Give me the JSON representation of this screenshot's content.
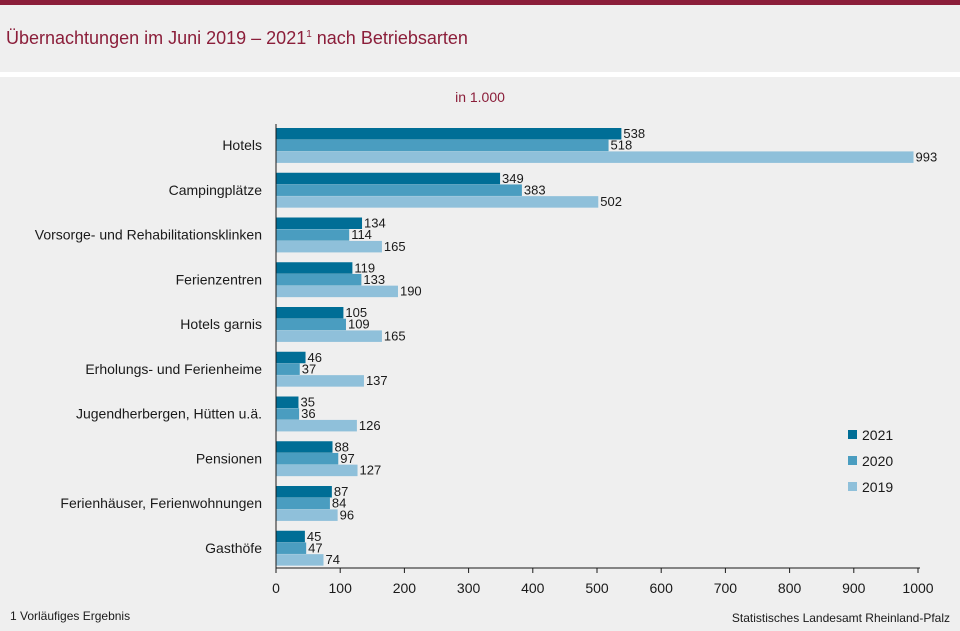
{
  "header": {
    "title": "Übernachtungen im Juni 2019 – 2021",
    "title_sup": "1",
    "title_tail": " nach Betriebsarten"
  },
  "chart_data": {
    "type": "bar",
    "orientation": "horizontal",
    "unit": "in 1.000",
    "categories": [
      "Hotels",
      "Campingplätze",
      "Vorsorge- und Rehabilitationsklinken",
      "Ferienzentren",
      "Hotels garnis",
      "Erholungs- und Ferienheime",
      "Jugendherbergen, Hütten u.ä.",
      "Pensionen",
      "Ferienhäuser, Ferienwohnungen",
      "Gasthöfe"
    ],
    "series": [
      {
        "name": "2021",
        "color": "#006e96",
        "values": [
          538,
          349,
          134,
          119,
          105,
          46,
          35,
          88,
          87,
          45
        ]
      },
      {
        "name": "2020",
        "color": "#4a9dc0",
        "values": [
          518,
          383,
          114,
          133,
          109,
          37,
          36,
          97,
          84,
          47
        ]
      },
      {
        "name": "2019",
        "color": "#8fc0da",
        "values": [
          993,
          502,
          165,
          190,
          165,
          137,
          126,
          127,
          96,
          74
        ]
      }
    ],
    "xlim": [
      0,
      1000
    ],
    "xticks": [
      0,
      100,
      200,
      300,
      400,
      500,
      600,
      700,
      800,
      900,
      1000
    ],
    "legend_position": "right",
    "grid": false
  },
  "footer": {
    "note": "1 Vorläufiges Ergebnis",
    "source": "Statistisches Landesamt Rheinland-Pfalz"
  }
}
